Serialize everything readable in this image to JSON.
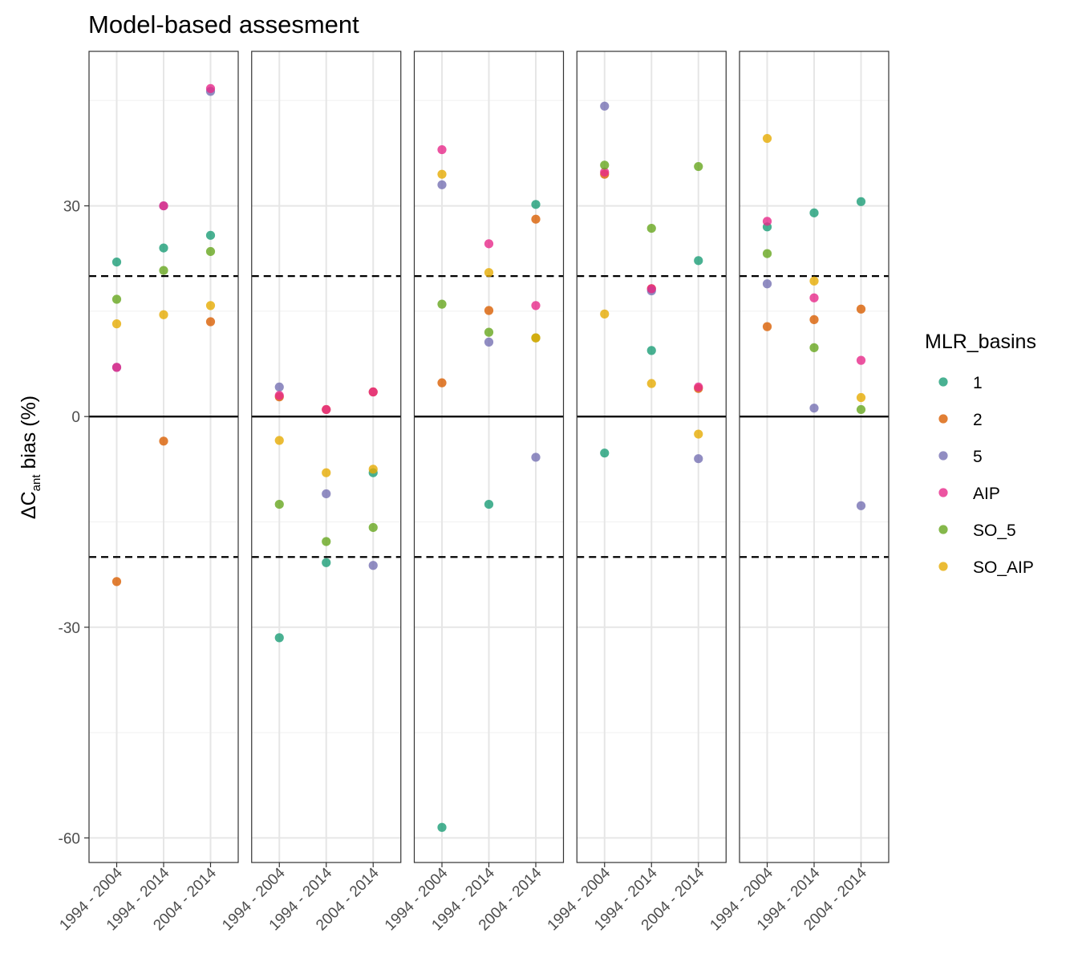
{
  "chart_data": {
    "type": "scatter",
    "title": "Model-based assesment",
    "ylabel": {
      "prefix": "ΔC",
      "subscript": "ant",
      "suffix": " bias (%)"
    },
    "ylim": [
      -63.5,
      52
    ],
    "yticks": [
      -60,
      -30,
      0,
      30
    ],
    "ytick_labels": [
      "-60",
      "-30",
      "0",
      "30"
    ],
    "categories": [
      "1994 - 2004",
      "1994 - 2014",
      "2004 - 2014"
    ],
    "reference_lines": {
      "solid": [
        0
      ],
      "dashed": [
        20,
        -20
      ]
    },
    "grid": true,
    "legend": {
      "title": "MLR_basins",
      "position": "right",
      "entries": [
        {
          "label": "1",
          "color": "#1b9e77"
        },
        {
          "label": "2",
          "color": "#d95f02"
        },
        {
          "label": "5",
          "color": "#7570b3"
        },
        {
          "label": "AIP",
          "color": "#e7298a"
        },
        {
          "label": "SO_5",
          "color": "#66a61e"
        },
        {
          "label": "SO_AIP",
          "color": "#e6ab02"
        }
      ]
    },
    "panels": [
      {
        "series": {
          "1": [
            22,
            24,
            25.8
          ],
          "2": [
            -23.5,
            -3.5,
            13.5
          ],
          "5": [
            7,
            30,
            46.3
          ],
          "AIP": [
            7,
            30,
            46.7
          ],
          "SO_5": [
            16.7,
            20.8,
            23.5
          ],
          "SO_AIP": [
            13.2,
            14.5,
            15.8
          ]
        }
      },
      {
        "series": {
          "1": [
            -31.5,
            -20.8,
            -8
          ],
          "2": [
            2.8,
            1,
            3.5
          ],
          "5": [
            4.2,
            -11,
            -21.2
          ],
          "AIP": [
            3,
            1,
            3.5
          ],
          "SO_5": [
            -12.5,
            -17.8,
            -15.8
          ],
          "SO_AIP": [
            -3.4,
            -8,
            -7.5
          ]
        }
      },
      {
        "series": {
          "1": [
            -58.5,
            -12.5,
            30.2
          ],
          "2": [
            4.8,
            15.1,
            28.1
          ],
          "5": [
            33,
            10.6,
            -5.8
          ],
          "AIP": [
            38,
            24.6,
            15.8
          ],
          "SO_5": [
            16,
            12,
            11.2
          ],
          "SO_AIP": [
            34.5,
            20.5,
            11.2
          ]
        }
      },
      {
        "series": {
          "1": [
            -5.2,
            9.4,
            22.2
          ],
          "2": [
            34.5,
            18.2,
            4
          ],
          "5": [
            44.2,
            17.9,
            -6
          ],
          "AIP": [
            34.8,
            18.2,
            4.2
          ],
          "SO_5": [
            35.8,
            26.8,
            35.6
          ],
          "SO_AIP": [
            14.6,
            4.7,
            -2.5
          ]
        }
      },
      {
        "series": {
          "1": [
            27,
            29,
            30.6
          ],
          "2": [
            12.8,
            13.8,
            15.3
          ],
          "5": [
            18.9,
            1.2,
            -12.7
          ],
          "AIP": [
            27.8,
            16.9,
            8
          ],
          "SO_5": [
            23.2,
            9.8,
            1
          ],
          "SO_AIP": [
            39.6,
            19.3,
            2.7
          ]
        }
      }
    ]
  }
}
